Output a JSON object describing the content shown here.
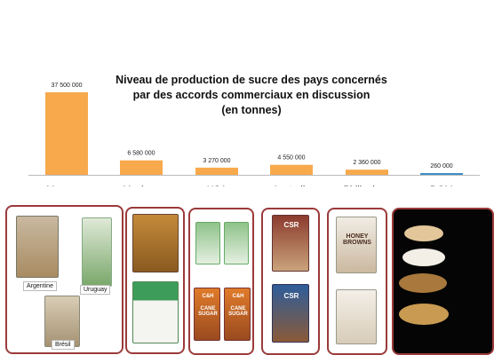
{
  "chart_data": {
    "type": "bar",
    "title_lines": [
      "Niveau de production de sucre des pays concernés",
      "par des accords commerciaux en discussion",
      "(en tonnes)"
    ],
    "categories": [
      "Mercosur",
      "Mexique",
      "USA",
      "Australie",
      "Philippines",
      "DOM"
    ],
    "values": [
      37500000,
      6580000,
      3270000,
      4550000,
      2360000,
      260000
    ],
    "value_labels": [
      "37 500 000",
      "6 580 000",
      "3 270 000",
      "4 550 000",
      "2 360 000",
      "260 000"
    ],
    "bar_colors": [
      "#f7a94c",
      "#f7a94c",
      "#f7a94c",
      "#f7a94c",
      "#f7a94c",
      "#3d8fc7"
    ],
    "ylim": [
      0,
      37500000
    ],
    "grid": false,
    "legend": "none"
  },
  "images": {
    "mercosur_labels": [
      "Argentine",
      "Uruguay",
      "Brésil"
    ],
    "usa_brand": "C&H",
    "usa_text": "CANE SUGAR",
    "australia_brand": "CSR",
    "philippines_text": "HONEY BROWNS"
  }
}
